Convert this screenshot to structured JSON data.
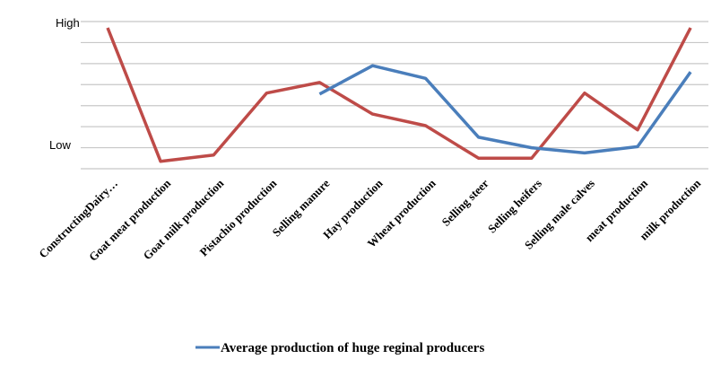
{
  "chart_data": {
    "type": "line",
    "y_tick_labels": {
      "high": "High",
      "low": "Low"
    },
    "ylim": [
      0,
      7
    ],
    "grid": true,
    "categories": [
      "ConstructingDairy…",
      "Goat meat production",
      "Goat milk production",
      "Pistachio production",
      "Selling manure",
      "Hay production",
      "Wheat production",
      "Selling steer",
      "Selling heifers",
      "Selling male calves",
      "meat production",
      "milk production"
    ],
    "series": [
      {
        "name": "Average production of huge reginal producers",
        "color": "#4a7ebb",
        "values": [
          null,
          null,
          null,
          null,
          3.55,
          4.9,
          4.3,
          1.5,
          1.0,
          0.75,
          1.05,
          4.6
        ]
      },
      {
        "name": "",
        "color": "#be4b48",
        "values": [
          6.7,
          0.35,
          0.65,
          3.6,
          4.1,
          2.6,
          2.05,
          0.5,
          0.5,
          3.6,
          1.85,
          6.7
        ]
      }
    ],
    "legend_position": "bottom"
  }
}
